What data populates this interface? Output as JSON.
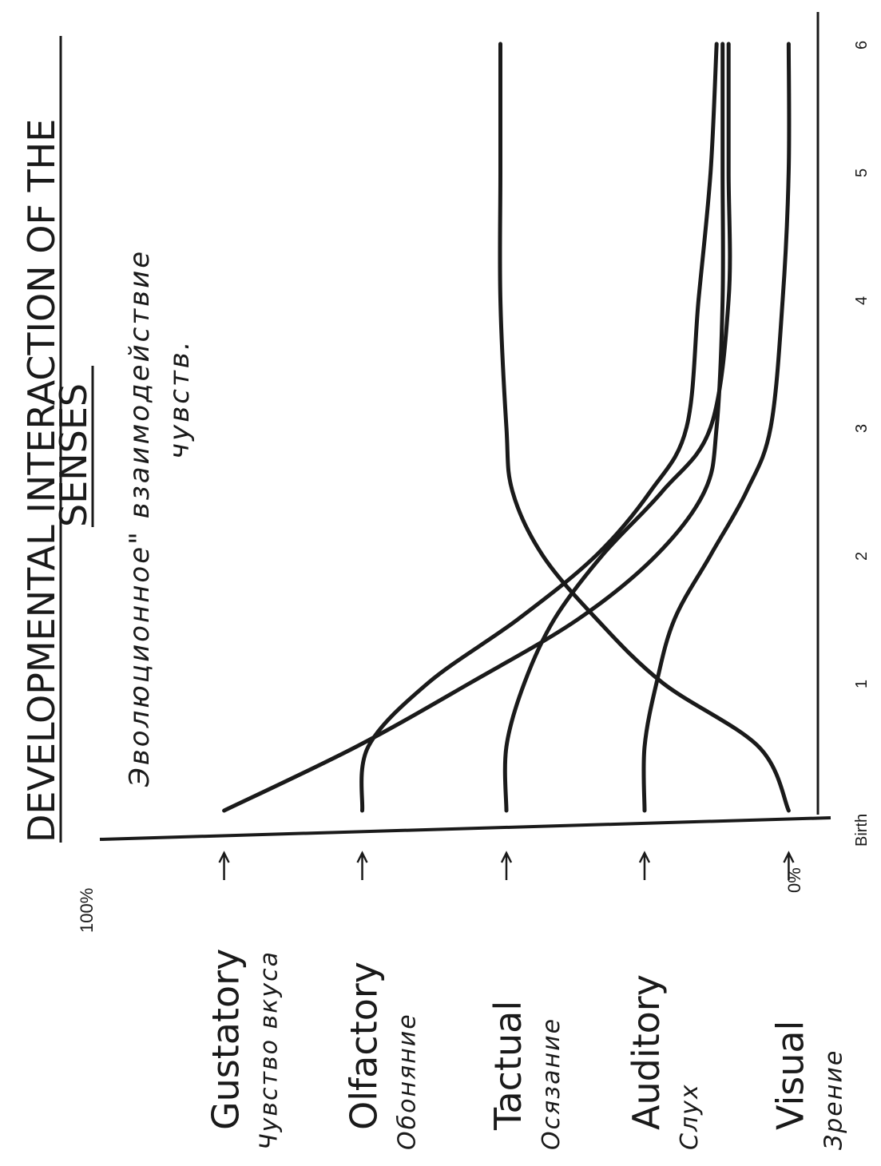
{
  "title": {
    "line1": "DEVELOPMENTAL INTERACTION OF THE",
    "line2": "SENSES"
  },
  "handwritten_title": {
    "line1": "Эволюционное\" взаимодействие",
    "line2": "чувств."
  },
  "y_axis": {
    "max_label": "100%",
    "min_label": "0%"
  },
  "chart_data": {
    "type": "line",
    "orientation": "rotated 90° counter-clockwise (time runs upward on the page)",
    "title": "DEVELOPMENTAL INTERACTION OF THE SENSES",
    "xlabel": "",
    "ylabel": "",
    "x_tick_labels": [
      "Birth",
      "1",
      "2",
      "3",
      "4",
      "5",
      "6"
    ],
    "x": [
      0,
      0.5,
      1,
      1.5,
      2,
      2.5,
      3,
      4,
      5,
      6
    ],
    "xlim": [
      0,
      6.5
    ],
    "ylim": [
      0,
      100
    ],
    "grid": false,
    "legend": "labels beside the arrows at the start of each curve",
    "series": [
      {
        "name": "Gustatory",
        "name_ru": "Чувство вкуса",
        "values": [
          97,
          75,
          56,
          38,
          25,
          17,
          15,
          14,
          14,
          14
        ],
        "color": "#1a1a1a"
      },
      {
        "name": "Olfactory",
        "name_ru": "Обоняние",
        "values": [
          74,
          73,
          63,
          48,
          35,
          26,
          20,
          18,
          16,
          15
        ],
        "color": "#1a1a1a"
      },
      {
        "name": "Tactual",
        "name_ru": "Осязание",
        "values": [
          50,
          50,
          47,
          42,
          34,
          24,
          16,
          13,
          13,
          13
        ],
        "color": "#1a1a1a"
      },
      {
        "name": "Auditory",
        "name_ru": "Слух",
        "values": [
          27,
          27,
          25,
          22,
          16,
          10,
          6,
          4,
          3,
          3
        ],
        "color": "#1a1a1a"
      },
      {
        "name": "Visual",
        "name_ru": "Зрение",
        "values": [
          3,
          8,
          24,
          35,
          44,
          49,
          50,
          51,
          51,
          51
        ],
        "color": "#1a1a1a"
      }
    ]
  }
}
